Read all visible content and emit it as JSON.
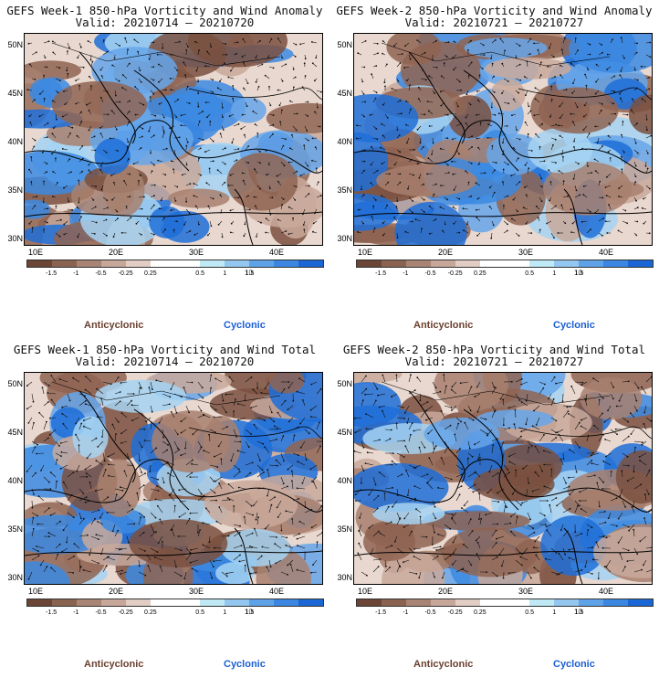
{
  "panels": [
    {
      "title": "GEFS Week-1 850-hPa Vorticity and Wind Anomaly",
      "valid": "Valid: 20210714 – 20210720"
    },
    {
      "title": "GEFS Week-2 850-hPa Vorticity and Wind Anomaly",
      "valid": "Valid: 20210721 – 20210727"
    },
    {
      "title": "GEFS Week-1 850-hPa Vorticity and Wind Total",
      "valid": "Valid: 20210714 – 20210720"
    },
    {
      "title": "GEFS Week-2 850-hPa Vorticity and Wind Total",
      "valid": "Valid: 20210721 – 20210727"
    }
  ],
  "lat_labels": [
    "50N",
    "45N",
    "40N",
    "35N",
    "30N"
  ],
  "lon_labels": [
    "10E",
    "20E",
    "30E",
    "40E"
  ],
  "colorbar": {
    "labels": [
      "-1.5",
      "-1",
      "-0.5",
      "-0.25",
      "0.25",
      "0.5",
      "1",
      "1.5"
    ],
    "colors": [
      "#6b4535",
      "#8a6350",
      "#a88474",
      "#c6a79a",
      "#e2cdc4",
      "#ffffff",
      "#ffffff",
      "#bfe9f5",
      "#93c7ef",
      "#5ea2e8",
      "#3a86e0",
      "#1a66d4"
    ],
    "scale_note": "10"
  },
  "legend": {
    "anticyclonic": "Anticyclonic",
    "cyclonic": "Cyclonic"
  },
  "colors": {
    "anticyclonic": "#6b4030",
    "cyclonic": "#1a5fd4"
  }
}
